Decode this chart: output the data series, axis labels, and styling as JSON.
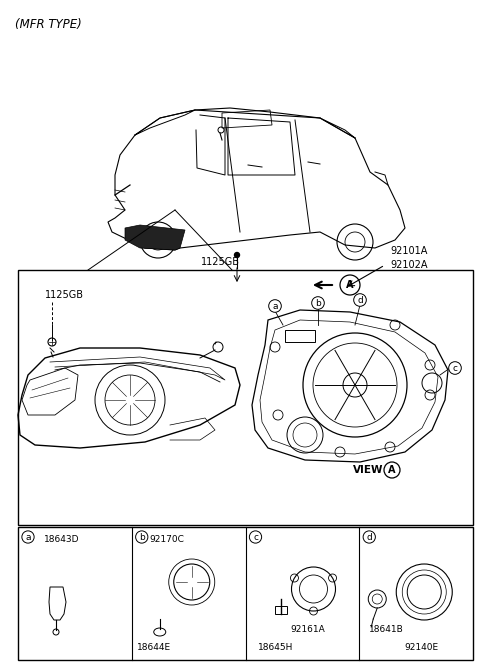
{
  "title": "(MFR TYPE)",
  "background_color": "#ffffff",
  "border_color": "#000000",
  "text_color": "#000000",
  "fig_width": 4.8,
  "fig_height": 6.63,
  "dpi": 100,
  "labels": {
    "mfr_type": "(MFR TYPE)",
    "part_a_main": "92101A\n92102A",
    "part_1125gb_top": "1125GB",
    "part_1125gb_left": "1125GB",
    "view_a": "VIEW",
    "circle_a": "A",
    "sub_a_label": "18643D",
    "sub_b_label1": "92170C",
    "sub_b_label2": "18644E",
    "sub_c_label1": "92161A",
    "sub_c_label2": "18645H",
    "sub_d_label1": "18641B",
    "sub_d_label2": "92140E"
  },
  "callout_letters": [
    "a",
    "b",
    "c",
    "d"
  ]
}
